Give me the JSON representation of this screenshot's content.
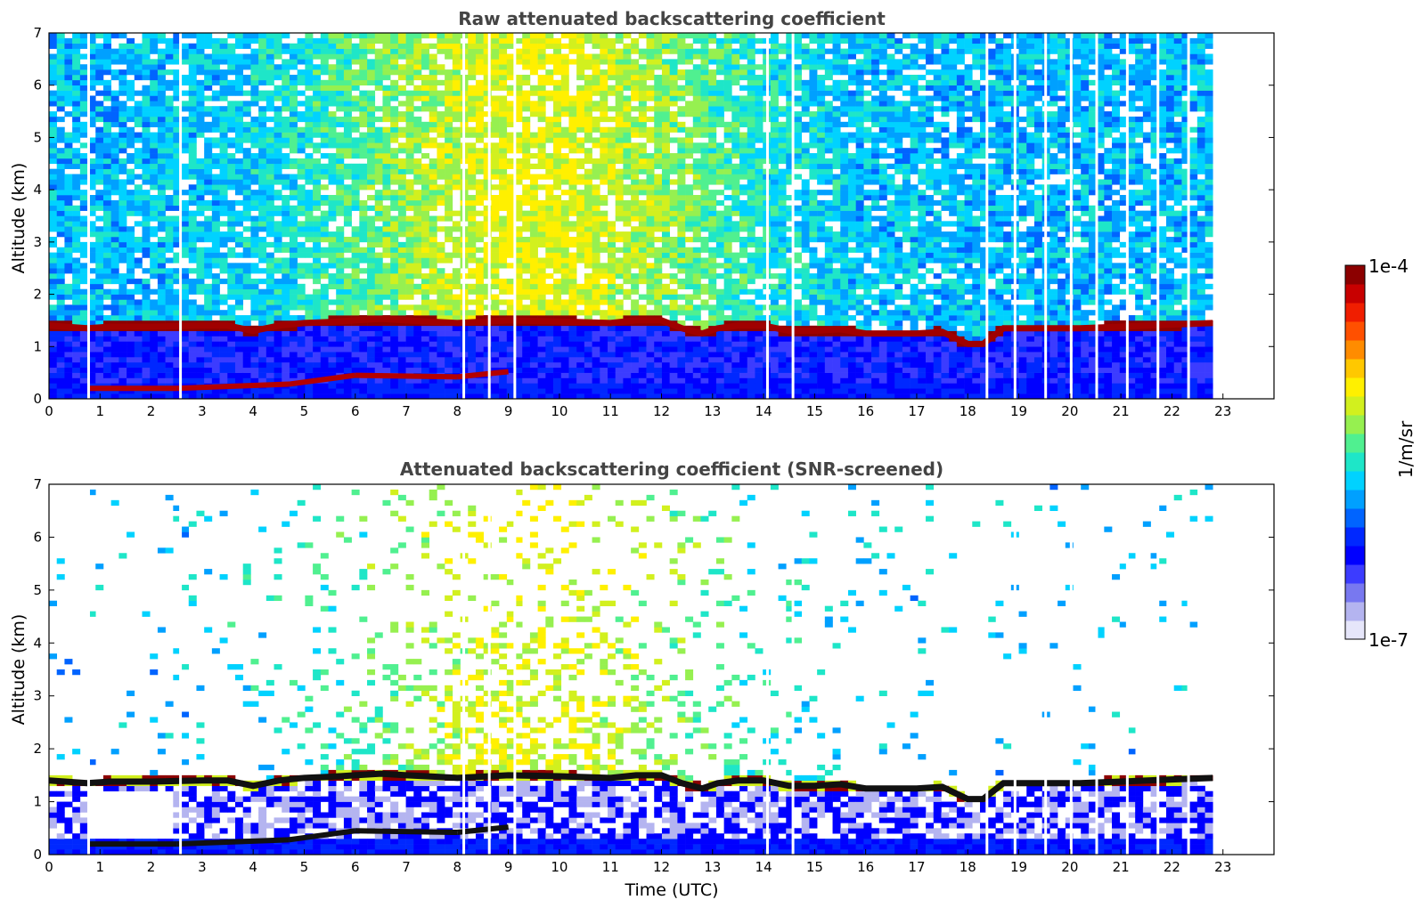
{
  "chart_data": [
    {
      "type": "heatmap",
      "title": "Raw attenuated backscattering coefficient",
      "xlabel": "",
      "ylabel": "Altitude (km)",
      "xlim": [
        0,
        24
      ],
      "ylim": [
        0,
        7
      ],
      "xticks": [
        "0",
        "1",
        "2",
        "3",
        "4",
        "5",
        "6",
        "7",
        "8",
        "9",
        "10",
        "11",
        "12",
        "13",
        "14",
        "15",
        "16",
        "17",
        "18",
        "19",
        "20",
        "21",
        "22",
        "23"
      ],
      "yticks": [
        "0",
        "1",
        "2",
        "3",
        "4",
        "5",
        "6",
        "7"
      ],
      "data_end_hour": 22.8,
      "color_scale": "log",
      "value_range": [
        "1e-7",
        "1e-4"
      ],
      "screened": false,
      "layer_top_km": [
        [
          0,
          1.4
        ],
        [
          0.75,
          1.35
        ],
        [
          1.2,
          1.38
        ],
        [
          2.0,
          1.38
        ],
        [
          3.0,
          1.4
        ],
        [
          3.5,
          1.4
        ],
        [
          4.0,
          1.3
        ],
        [
          4.5,
          1.4
        ],
        [
          5.0,
          1.45
        ],
        [
          5.5,
          1.47
        ],
        [
          6.0,
          1.5
        ],
        [
          6.5,
          1.53
        ],
        [
          7.0,
          1.5
        ],
        [
          7.4,
          1.48
        ],
        [
          8.0,
          1.45
        ],
        [
          9.0,
          1.5
        ],
        [
          10.0,
          1.48
        ],
        [
          11.0,
          1.45
        ],
        [
          11.5,
          1.5
        ],
        [
          12.0,
          1.5
        ],
        [
          12.4,
          1.35
        ],
        [
          12.8,
          1.25
        ],
        [
          13.1,
          1.35
        ],
        [
          13.5,
          1.4
        ],
        [
          14.0,
          1.4
        ],
        [
          14.5,
          1.3
        ],
        [
          15.0,
          1.3
        ],
        [
          15.5,
          1.33
        ],
        [
          16.0,
          1.25
        ],
        [
          17.0,
          1.25
        ],
        [
          17.5,
          1.28
        ],
        [
          18.0,
          1.05
        ],
        [
          18.3,
          1.05
        ],
        [
          18.7,
          1.35
        ],
        [
          19.2,
          1.35
        ],
        [
          20.2,
          1.35
        ],
        [
          21.0,
          1.38
        ],
        [
          22.0,
          1.42
        ],
        [
          22.8,
          1.45
        ]
      ],
      "lower_layer_km": [
        [
          0.75,
          0.2
        ],
        [
          2.5,
          0.2
        ],
        [
          4.7,
          0.28
        ],
        [
          6.0,
          0.45
        ],
        [
          8.0,
          0.42
        ],
        [
          9.0,
          0.52
        ]
      ],
      "data_gaps_hours": [
        0.75,
        2.55,
        8.1,
        8.6,
        9.1,
        14.05,
        14.55,
        18.35,
        18.9,
        19.5,
        20.0,
        20.5,
        21.1,
        21.7,
        22.3
      ]
    },
    {
      "type": "heatmap",
      "title": "Attenuated backscattering coefficient (SNR-screened)",
      "xlabel": "Time (UTC)",
      "ylabel": "Altitude (km)",
      "xlim": [
        0,
        24
      ],
      "ylim": [
        0,
        7
      ],
      "xticks": [
        "0",
        "1",
        "2",
        "3",
        "4",
        "5",
        "6",
        "7",
        "8",
        "9",
        "10",
        "11",
        "12",
        "13",
        "14",
        "15",
        "16",
        "17",
        "18",
        "19",
        "20",
        "21",
        "22",
        "23"
      ],
      "yticks": [
        "0",
        "1",
        "2",
        "3",
        "4",
        "5",
        "6",
        "7"
      ],
      "data_end_hour": 22.8,
      "color_scale": "log",
      "value_range": [
        "1e-7",
        "1e-4"
      ],
      "screened": true
    }
  ],
  "colorbar": {
    "max_label": "1e-4",
    "min_label": "1e-7",
    "unit_label": "1/m/sr",
    "colors": [
      "#e6e6fa",
      "#b4b4f0",
      "#7878f0",
      "#3c3cff",
      "#0000ff",
      "#0028ff",
      "#0064ff",
      "#00a0ff",
      "#00d2ff",
      "#1ee6c8",
      "#50f090",
      "#96f050",
      "#d2f01e",
      "#fff000",
      "#ffc800",
      "#ff8c00",
      "#ff5000",
      "#f01e00",
      "#c80000",
      "#8c0000"
    ]
  }
}
